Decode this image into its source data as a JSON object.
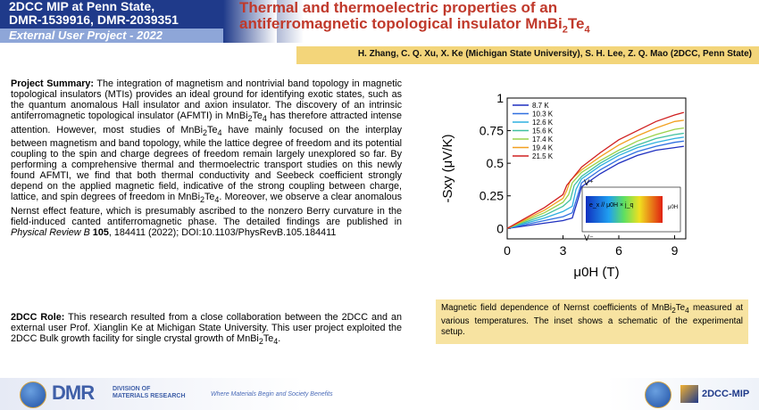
{
  "header": {
    "line1": "2DCC MIP at Penn State,",
    "line2": "DMR-1539916, DMR-2039351",
    "line3": "External User Project - 2022",
    "title_line1": "Thermal and thermoelectric properties of an",
    "title_line2_prefix": "antiferromagnetic topological insulator MnBi",
    "title_sub1": "2",
    "title_mid": "Te",
    "title_sub2": "4"
  },
  "authors": "H. Zhang,  C. Q. Xu, X. Ke (Michigan  State University),  S. H. Lee, Z. Q. Mao (2DCC, Penn  State)",
  "summary": {
    "heading": "Project Summary:",
    "p1": " The integration of magnetism and nontrivial band topology in magnetic topological insulators (MTIs) provides an ideal ground for identifying exotic states, such as the quantum anomalous Hall insulator and axion insulator. The discovery of an intrinsic antiferromagnetic topological insulator (AFMTI) in MnBi",
    "p2": " has therefore attracted intense attention. However, most studies of MnBi",
    "p3": " have mainly focused on the interplay between magnetism and band topology, while the lattice degree of freedom and its potential coupling to the spin and charge degrees of freedom remain largely unexplored so far. By performing a comprehensive thermal and thermoelectric transport studies on this newly found AFMTI, we find that both thermal conductivity and Seebeck coefficient strongly depend on the applied magnetic field, indicative of the strong coupling between charge, lattice, and spin degrees of freedom in MnBi",
    "p4": ". Moreover, we observe a clear anomalous Nernst effect feature, which is presumably ascribed to the nonzero Berry curvature in the field-induced canted antiferromagnetic phase. The detailed findings are published in ",
    "journal": "Physical Review B",
    "volume": " 105",
    "p5": ", 184411 (2022); DOI:10.1103/PhysRevB.105.184411",
    "sub2": "2",
    "te": "Te",
    "sub4": "4"
  },
  "role": {
    "heading": "2DCC Role:",
    "text": " This research resulted from a close collaboration between the 2DCC and an external user Prof. Xianglin Ke at Michigan State University. This user project exploited the 2DCC Bulk growth facility for single crystal growth of MnBi",
    "end": "."
  },
  "caption": {
    "text1": "Magnetic field dependence of Nernst coefficients of MnBi",
    "text2": " measured at various temperatures. The inset shows a schematic of the experimental setup."
  },
  "chart_data": {
    "type": "line",
    "xlabel": "μ0H (T)",
    "ylabel": "-Sxy (μV/K)",
    "xlim": [
      0,
      9.6
    ],
    "ylim": [
      -0.08,
      1.0
    ],
    "xticks": [
      0,
      3,
      6,
      9
    ],
    "yticks": [
      0,
      0.25,
      0.5,
      0.75,
      1
    ],
    "ytick_labels": [
      "0",
      "0.25",
      "0.5",
      "0.75",
      "1"
    ],
    "legend_position": "top-left",
    "series": [
      {
        "name": "8.7 K",
        "color": "#1f2fbf",
        "x": [
          0,
          1,
          2,
          3,
          3.5,
          3.8,
          4,
          5,
          6,
          7,
          8,
          9,
          9.5
        ],
        "y": [
          0.0,
          0.02,
          0.04,
          0.06,
          0.08,
          0.22,
          0.32,
          0.42,
          0.5,
          0.56,
          0.6,
          0.62,
          0.63
        ]
      },
      {
        "name": "10.3 K",
        "color": "#2f6fe0",
        "x": [
          0,
          1,
          2,
          3,
          3.5,
          3.8,
          4,
          5,
          6,
          7,
          8,
          9,
          9.5
        ],
        "y": [
          0.0,
          0.03,
          0.06,
          0.09,
          0.12,
          0.26,
          0.35,
          0.45,
          0.53,
          0.59,
          0.63,
          0.66,
          0.67
        ]
      },
      {
        "name": "12.6 K",
        "color": "#2fb0e0",
        "x": [
          0,
          1,
          2,
          3,
          3.5,
          3.7,
          4,
          5,
          6,
          7,
          8,
          9,
          9.5
        ],
        "y": [
          0.0,
          0.04,
          0.08,
          0.13,
          0.17,
          0.3,
          0.38,
          0.48,
          0.56,
          0.62,
          0.66,
          0.69,
          0.7
        ]
      },
      {
        "name": "15.6 K",
        "color": "#40c0a0",
        "x": [
          0,
          1,
          2,
          3,
          3.4,
          3.6,
          4,
          5,
          6,
          7,
          8,
          9,
          9.5
        ],
        "y": [
          0.0,
          0.05,
          0.1,
          0.17,
          0.22,
          0.33,
          0.4,
          0.5,
          0.58,
          0.64,
          0.69,
          0.72,
          0.73
        ]
      },
      {
        "name": "17.4 K",
        "color": "#9ad24a",
        "x": [
          0,
          1,
          2,
          3,
          3.3,
          3.5,
          4,
          5,
          6,
          7,
          8,
          9,
          9.5
        ],
        "y": [
          0.0,
          0.06,
          0.12,
          0.2,
          0.26,
          0.35,
          0.43,
          0.52,
          0.6,
          0.67,
          0.72,
          0.76,
          0.77
        ]
      },
      {
        "name": "19.4 K",
        "color": "#f2a020",
        "x": [
          0,
          1,
          2,
          3,
          3.2,
          3.4,
          4,
          5,
          6,
          7,
          8,
          9,
          9.5
        ],
        "y": [
          0.0,
          0.07,
          0.14,
          0.23,
          0.29,
          0.37,
          0.45,
          0.55,
          0.64,
          0.71,
          0.77,
          0.82,
          0.83
        ]
      },
      {
        "name": "21.5 K",
        "color": "#d02020",
        "x": [
          0,
          1,
          2,
          3,
          3.2,
          4,
          5,
          6,
          7,
          8,
          9,
          9.5
        ],
        "y": [
          0.0,
          0.08,
          0.16,
          0.26,
          0.33,
          0.47,
          0.58,
          0.68,
          0.75,
          0.82,
          0.87,
          0.89
        ]
      }
    ],
    "inset": {
      "v_top": "V⁺",
      "v_bottom": "V⁻",
      "label": "e_x // μ0H × j_q",
      "b_label": "μ0H"
    }
  },
  "footer": {
    "dmr": "DMR",
    "dmr_sub1": "DIVISION OF",
    "dmr_sub2": "MATERIALS RESEARCH",
    "tagline": "Where Materials Begin and Society Benefits",
    "mip": "2DCC-MIP"
  }
}
